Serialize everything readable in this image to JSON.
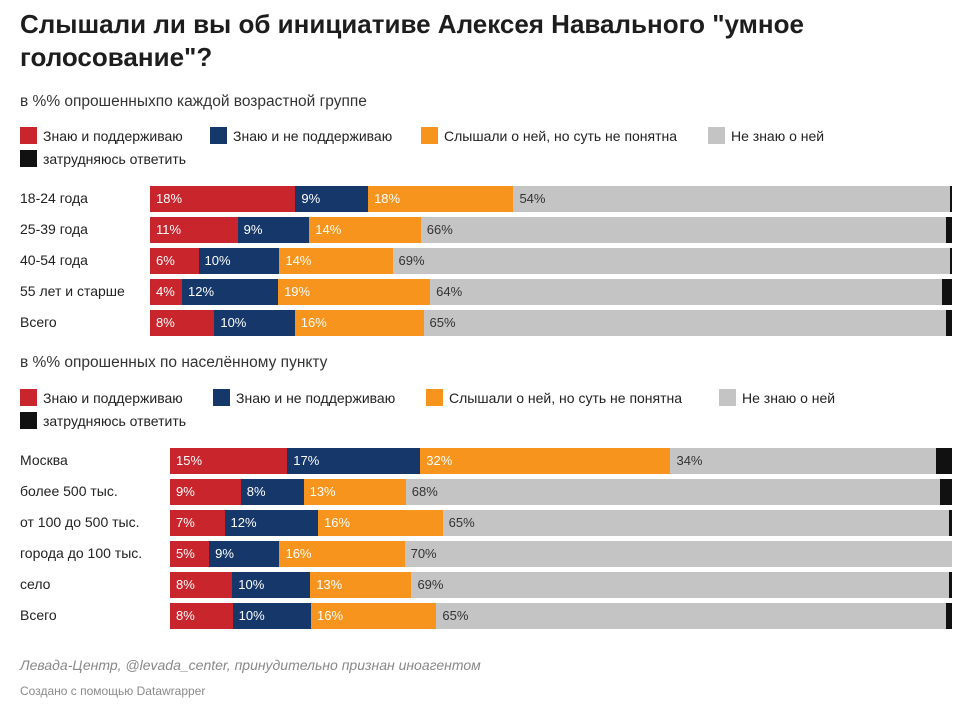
{
  "title": "Слышали ли вы об инициативе Алексея Навального \"умное голосование\"?",
  "colors": {
    "support": "#c8252c",
    "not_support": "#15376a",
    "heard": "#f7941d",
    "not_know": "#c4c4c4",
    "hard": "#111111"
  },
  "chart_data": [
    {
      "type": "bar",
      "stacked": true,
      "orientation": "horizontal",
      "subtitle": "в %% опрошенныхпо каждой возрастной группе",
      "legend": [
        "Знаю и поддерживаю",
        "Знаю и не поддерживаю",
        "Слышали о ней, но суть не понятна",
        "Не знаю о ней",
        "затрудняюсь ответить"
      ],
      "categories": [
        "18-24 года",
        "25-39 года",
        "40-54 года",
        "55 лет и старше",
        "Всего"
      ],
      "series": [
        {
          "name": "Знаю и поддерживаю",
          "values": [
            18,
            11,
            6,
            4,
            8
          ]
        },
        {
          "name": "Знаю и не поддерживаю",
          "values": [
            9,
            9,
            10,
            12,
            10
          ]
        },
        {
          "name": "Слышали о ней, но суть не понятна",
          "values": [
            18,
            14,
            14,
            19,
            16
          ]
        },
        {
          "name": "Не знаю о ней",
          "values": [
            54,
            66,
            69,
            64,
            65
          ]
        },
        {
          "name": "затрудняюсь ответить",
          "values": [
            0.3,
            0.7,
            0.2,
            1.2,
            0.7
          ]
        }
      ],
      "labels": [
        [
          "18%",
          "9%",
          "18%",
          "54%",
          ""
        ],
        [
          "11%",
          "9%",
          "14%",
          "66%",
          ""
        ],
        [
          "6%",
          "10%",
          "14%",
          "69%",
          ""
        ],
        [
          "4%",
          "12%",
          "19%",
          "64%",
          ""
        ],
        [
          "8%",
          "10%",
          "16%",
          "65%",
          ""
        ]
      ]
    },
    {
      "type": "bar",
      "stacked": true,
      "orientation": "horizontal",
      "subtitle": "в %% опрошенных по населённому пункту",
      "legend": [
        "Знаю и поддерживаю",
        "Знаю и не поддерживаю",
        "Слышали о ней, но суть не понятна",
        "Не знаю о ней",
        "затрудняюсь ответить"
      ],
      "categories": [
        "Москва",
        "более 500 тыс.",
        "от 100 до 500 тыс.",
        "города до 100 тыс.",
        "село",
        "Всего"
      ],
      "series": [
        {
          "name": "Знаю и поддерживаю",
          "values": [
            15,
            9,
            7,
            5,
            8,
            8
          ]
        },
        {
          "name": "Знаю и не поддерживаю",
          "values": [
            17,
            8,
            12,
            9,
            10,
            10
          ]
        },
        {
          "name": "Слышали о ней, но суть не понятна",
          "values": [
            32,
            13,
            16,
            16,
            13,
            16
          ]
        },
        {
          "name": "Не знаю о ней",
          "values": [
            34,
            68,
            65,
            70,
            69,
            65
          ]
        },
        {
          "name": "затрудняюсь ответить",
          "values": [
            2,
            1.5,
            0.4,
            0,
            0.4,
            0.8
          ]
        }
      ],
      "labels": [
        [
          "15%",
          "17%",
          "32%",
          "34%",
          ""
        ],
        [
          "9%",
          "8%",
          "13%",
          "68%",
          ""
        ],
        [
          "7%",
          "12%",
          "16%",
          "65%",
          ""
        ],
        [
          "5%",
          "9%",
          "16%",
          "70%",
          ""
        ],
        [
          "8%",
          "10%",
          "13%",
          "69%",
          ""
        ],
        [
          "8%",
          "10%",
          "16%",
          "65%",
          ""
        ]
      ]
    }
  ],
  "footer": {
    "source": "Левада-Центр, @levada_center, принудительно признан иноагентом",
    "credit": "Создано с помощью Datawrapper"
  }
}
